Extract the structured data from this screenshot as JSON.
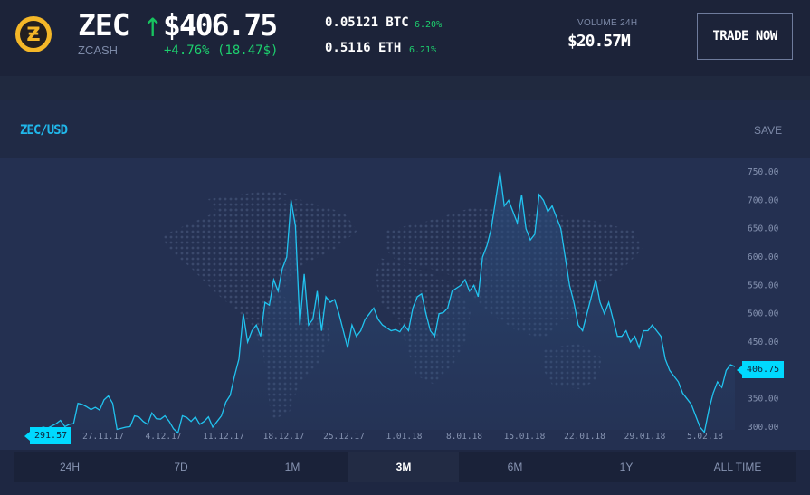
{
  "header": {
    "logo_glyph": "Ƶ",
    "symbol": "ZEC",
    "name": "ZCASH",
    "arrow": "↑",
    "price": "$406.75",
    "change": "+4.76% (18.47$)",
    "btc_rate": "0.05121 BTC",
    "btc_change": "6.20%",
    "eth_rate": "0.5116 ETH",
    "eth_change": "6.21%",
    "volume_label": "VOLUME 24H",
    "volume_value": "$20.57M",
    "trade_label": "TRADE NOW"
  },
  "panel": {
    "pair": "ZEC/USD",
    "save_label": "SAVE"
  },
  "tabs": [
    "24H",
    "7D",
    "1M",
    "3M",
    "6M",
    "1Y",
    "ALL TIME"
  ],
  "active_tab": "3M",
  "colors": {
    "accent": "#20b7ea",
    "positive": "#1dcf6e",
    "logo": "#f4b728",
    "line": "#21c4f0"
  },
  "chart_data": {
    "type": "line",
    "title": "",
    "xlabel": "",
    "ylabel": "",
    "ylim": [
      285,
      760
    ],
    "y_ticks": [
      "750.00",
      "700.00",
      "650.00",
      "600.00",
      "550.00",
      "500.00",
      "450.00",
      "400.00",
      "350.00",
      "300.00"
    ],
    "x_ticks": [
      "27.11.17",
      "4.12.17",
      "11.12.17",
      "18.12.17",
      "25.12.17",
      "1.01.18",
      "8.01.18",
      "15.01.18",
      "22.01.18",
      "29.01.18",
      "5.02.18"
    ],
    "start_label": "291.57",
    "end_label": "406.75",
    "series": [
      {
        "values": [
          291.57,
          296,
          300,
          298,
          302,
          306,
          312,
          301,
          305,
          306,
          342,
          340,
          336,
          331,
          335,
          330,
          348,
          355,
          342,
          296,
          298,
          300,
          301,
          320,
          318,
          310,
          305,
          325,
          315,
          314,
          320,
          310,
          297,
          290,
          320,
          317,
          310,
          318,
          305,
          310,
          318,
          300,
          310,
          320,
          344,
          356,
          390,
          420,
          500,
          450,
          470,
          480,
          460,
          520,
          515,
          560,
          540,
          580,
          600,
          700,
          655,
          480,
          570,
          480,
          490,
          540,
          470,
          530,
          520,
          525,
          500,
          470,
          440,
          480,
          460,
          470,
          490,
          500,
          510,
          490,
          480,
          475,
          470,
          472,
          468,
          480,
          470,
          510,
          530,
          535,
          500,
          470,
          460,
          500,
          502,
          510,
          540,
          545,
          550,
          560,
          540,
          550,
          530,
          600,
          620,
          650,
          700,
          750,
          690,
          700,
          680,
          660,
          710,
          650,
          630,
          640,
          710,
          700,
          680,
          690,
          670,
          650,
          600,
          550,
          520,
          480,
          470,
          500,
          530,
          560,
          520,
          500,
          520,
          490,
          460,
          460,
          470,
          450,
          460,
          440,
          470,
          470,
          480,
          470,
          460,
          420,
          400,
          390,
          380,
          360,
          350,
          340,
          320,
          300,
          291,
          330,
          360,
          380,
          370,
          400,
          410,
          406.75
        ]
      }
    ]
  }
}
